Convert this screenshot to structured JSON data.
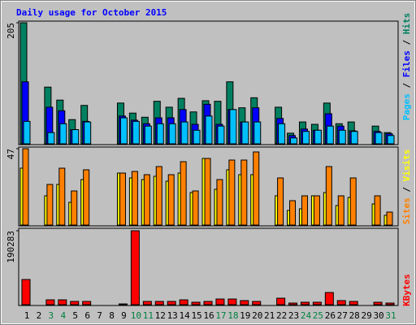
{
  "chart_data": {
    "type": "bar",
    "title": "Daily usage for October 2015",
    "categories": [
      "1",
      "2",
      "3",
      "4",
      "5",
      "6",
      "7",
      "8",
      "9",
      "10",
      "11",
      "12",
      "13",
      "14",
      "15",
      "16",
      "17",
      "18",
      "19",
      "20",
      "21",
      "22",
      "23",
      "24",
      "25",
      "26",
      "27",
      "28",
      "29",
      "30",
      "31"
    ],
    "category_colors": [
      "#000000",
      "#000000",
      "#008040",
      "#008040",
      "#000000",
      "#000000",
      "#000000",
      "#000000",
      "#000000",
      "#008040",
      "#008040",
      "#000000",
      "#000000",
      "#000000",
      "#000000",
      "#000000",
      "#008040",
      "#008040",
      "#000000",
      "#000000",
      "#000000",
      "#000000",
      "#000000",
      "#008040",
      "#008040",
      "#000000",
      "#000000",
      "#000000",
      "#000000",
      "#000000",
      "#008040"
    ],
    "legend_separator": " / ",
    "panels": [
      {
        "ylim": [
          0,
          205
        ],
        "yticks": [
          205
        ],
        "series": [
          {
            "name": "Pages",
            "color": "#00c0ff",
            "values": [
              38,
              0,
              19,
              34,
              24,
              37,
              0,
              0,
              44,
              38,
              30,
              34,
              34,
              37,
              23,
              47,
              30,
              58,
              37,
              37,
              0,
              34,
              10,
              21,
              23,
              30,
              23,
              21,
              0,
              19,
              14
            ]
          },
          {
            "name": "Files",
            "color": "#0000ff",
            "values": [
              105,
              0,
              62,
              56,
              24,
              38,
              0,
              0,
              47,
              40,
              34,
              44,
              44,
              58,
              33,
              67,
              33,
              58,
              37,
              61,
              0,
              43,
              14,
              25,
              23,
              51,
              30,
              22,
              0,
              21,
              17
            ]
          },
          {
            "name": "Hits",
            "color": "#008060",
            "values": [
              205,
              0,
              96,
              74,
              41,
              65,
              0,
              0,
              69,
              52,
              45,
              72,
              62,
              77,
              54,
              73,
              72,
              105,
              61,
              78,
              0,
              62,
              18,
              37,
              33,
              69,
              34,
              37,
              0,
              30,
              19
            ]
          }
        ]
      },
      {
        "ylim": [
          0,
          47
        ],
        "yticks": [
          47
        ],
        "series": [
          {
            "name": "Sites",
            "color": "#ff8000",
            "values": [
              47,
              0,
              25,
              35,
              21,
              34,
              0,
              0,
              32,
              33,
              31,
              36,
              31,
              39,
              21,
              41,
              28,
              40,
              40,
              45,
              0,
              29,
              15,
              18,
              18,
              36,
              18,
              29,
              0,
              18,
              8
            ]
          },
          {
            "name": "Visits",
            "color": "#ffff00",
            "values": [
              35,
              0,
              18,
              25,
              14,
              28,
              0,
              0,
              32,
              29,
              28,
              30,
              27,
              32,
              20,
              41,
              22,
              34,
              31,
              31,
              0,
              18,
              9,
              10,
              18,
              20,
              12,
              17,
              0,
              13,
              6
            ]
          }
        ]
      },
      {
        "ylim": [
          0,
          190283
        ],
        "yticks": [
          190283
        ],
        "series": [
          {
            "name": "KBytes",
            "color": "#ff0000",
            "values": [
              64800,
              0,
              12500,
              12500,
              8400,
              8400,
              0,
              0,
              2000,
              190283,
              8400,
              8400,
              8400,
              12500,
              6300,
              8400,
              14600,
              14600,
              10500,
              8400,
              0,
              16700,
              4200,
              6300,
              6300,
              31400,
              10500,
              8400,
              0,
              6300,
              4200
            ]
          }
        ]
      }
    ]
  }
}
